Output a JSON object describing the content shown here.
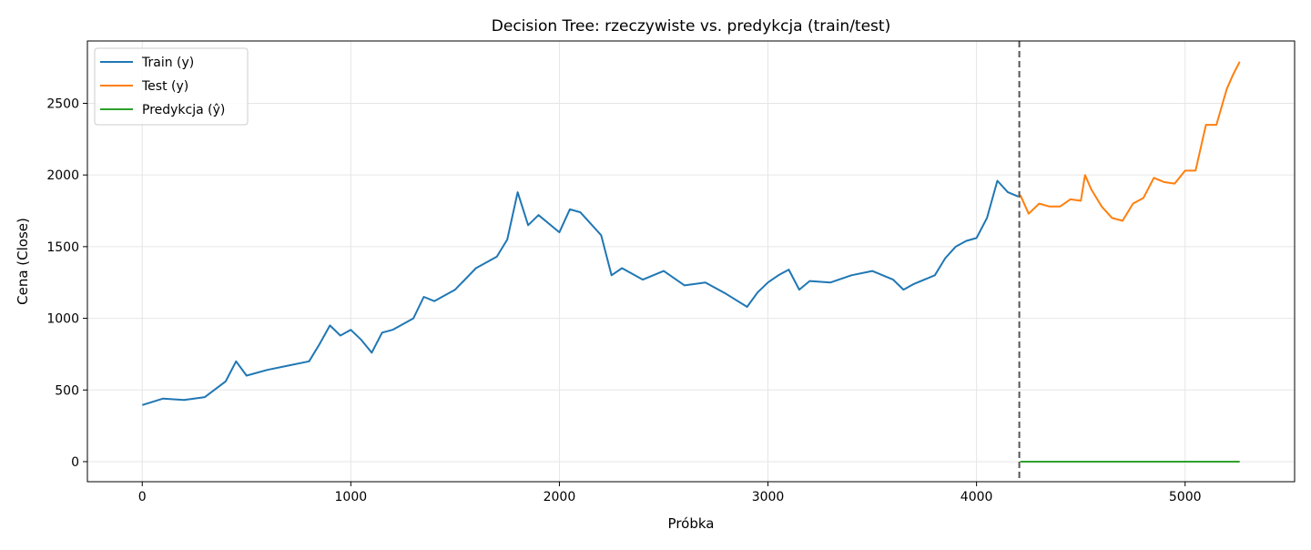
{
  "chart_data": {
    "type": "line",
    "title": "Decision Tree: rzeczywiste vs. predykcja (train/test)",
    "xlabel": "Próbka",
    "ylabel": "Cena (Close)",
    "xlim": [
      -263,
      5525
    ],
    "ylim": [
      -140,
      2935
    ],
    "xticks": [
      0,
      1000,
      2000,
      3000,
      4000,
      5000
    ],
    "yticks": [
      0,
      500,
      1000,
      1500,
      2000,
      2500
    ],
    "grid": true,
    "legend": "upper left",
    "split_x": 4205,
    "series": [
      {
        "name": "Train (y)",
        "color": "#1f77b4",
        "x": [
          0,
          100,
          200,
          300,
          400,
          450,
          500,
          600,
          700,
          800,
          850,
          900,
          950,
          1000,
          1050,
          1100,
          1150,
          1200,
          1300,
          1350,
          1400,
          1500,
          1600,
          1700,
          1750,
          1800,
          1850,
          1900,
          2000,
          2050,
          2100,
          2200,
          2250,
          2300,
          2400,
          2500,
          2600,
          2700,
          2800,
          2900,
          2950,
          3000,
          3050,
          3100,
          3150,
          3200,
          3300,
          3400,
          3500,
          3600,
          3650,
          3700,
          3800,
          3850,
          3900,
          3950,
          4000,
          4050,
          4100,
          4150,
          4200
        ],
        "values": [
          395,
          440,
          430,
          450,
          560,
          700,
          600,
          640,
          670,
          700,
          820,
          950,
          880,
          920,
          850,
          760,
          900,
          920,
          1000,
          1150,
          1120,
          1200,
          1350,
          1430,
          1550,
          1880,
          1650,
          1720,
          1600,
          1760,
          1740,
          1580,
          1300,
          1350,
          1270,
          1330,
          1230,
          1250,
          1170,
          1080,
          1180,
          1250,
          1300,
          1340,
          1200,
          1260,
          1250,
          1300,
          1330,
          1270,
          1200,
          1240,
          1300,
          1420,
          1500,
          1540,
          1560,
          1700,
          1960,
          1880,
          1850
        ]
      },
      {
        "name": "Test (y)",
        "color": "#ff7f0e",
        "x": [
          4210,
          4250,
          4300,
          4350,
          4400,
          4450,
          4500,
          4520,
          4550,
          4600,
          4650,
          4700,
          4750,
          4800,
          4850,
          4900,
          4950,
          5000,
          5050,
          5100,
          5150,
          5200,
          5230,
          5262
        ],
        "values": [
          1860,
          1730,
          1800,
          1780,
          1780,
          1830,
          1820,
          2000,
          1900,
          1780,
          1700,
          1680,
          1800,
          1840,
          1980,
          1950,
          1940,
          2030,
          2030,
          2350,
          2350,
          2600,
          2700,
          2790
        ]
      },
      {
        "name": "Predykcja (ŷ)",
        "color": "#2ca02c",
        "x": [
          4210,
          5262
        ],
        "values": [
          0,
          0
        ]
      }
    ]
  }
}
